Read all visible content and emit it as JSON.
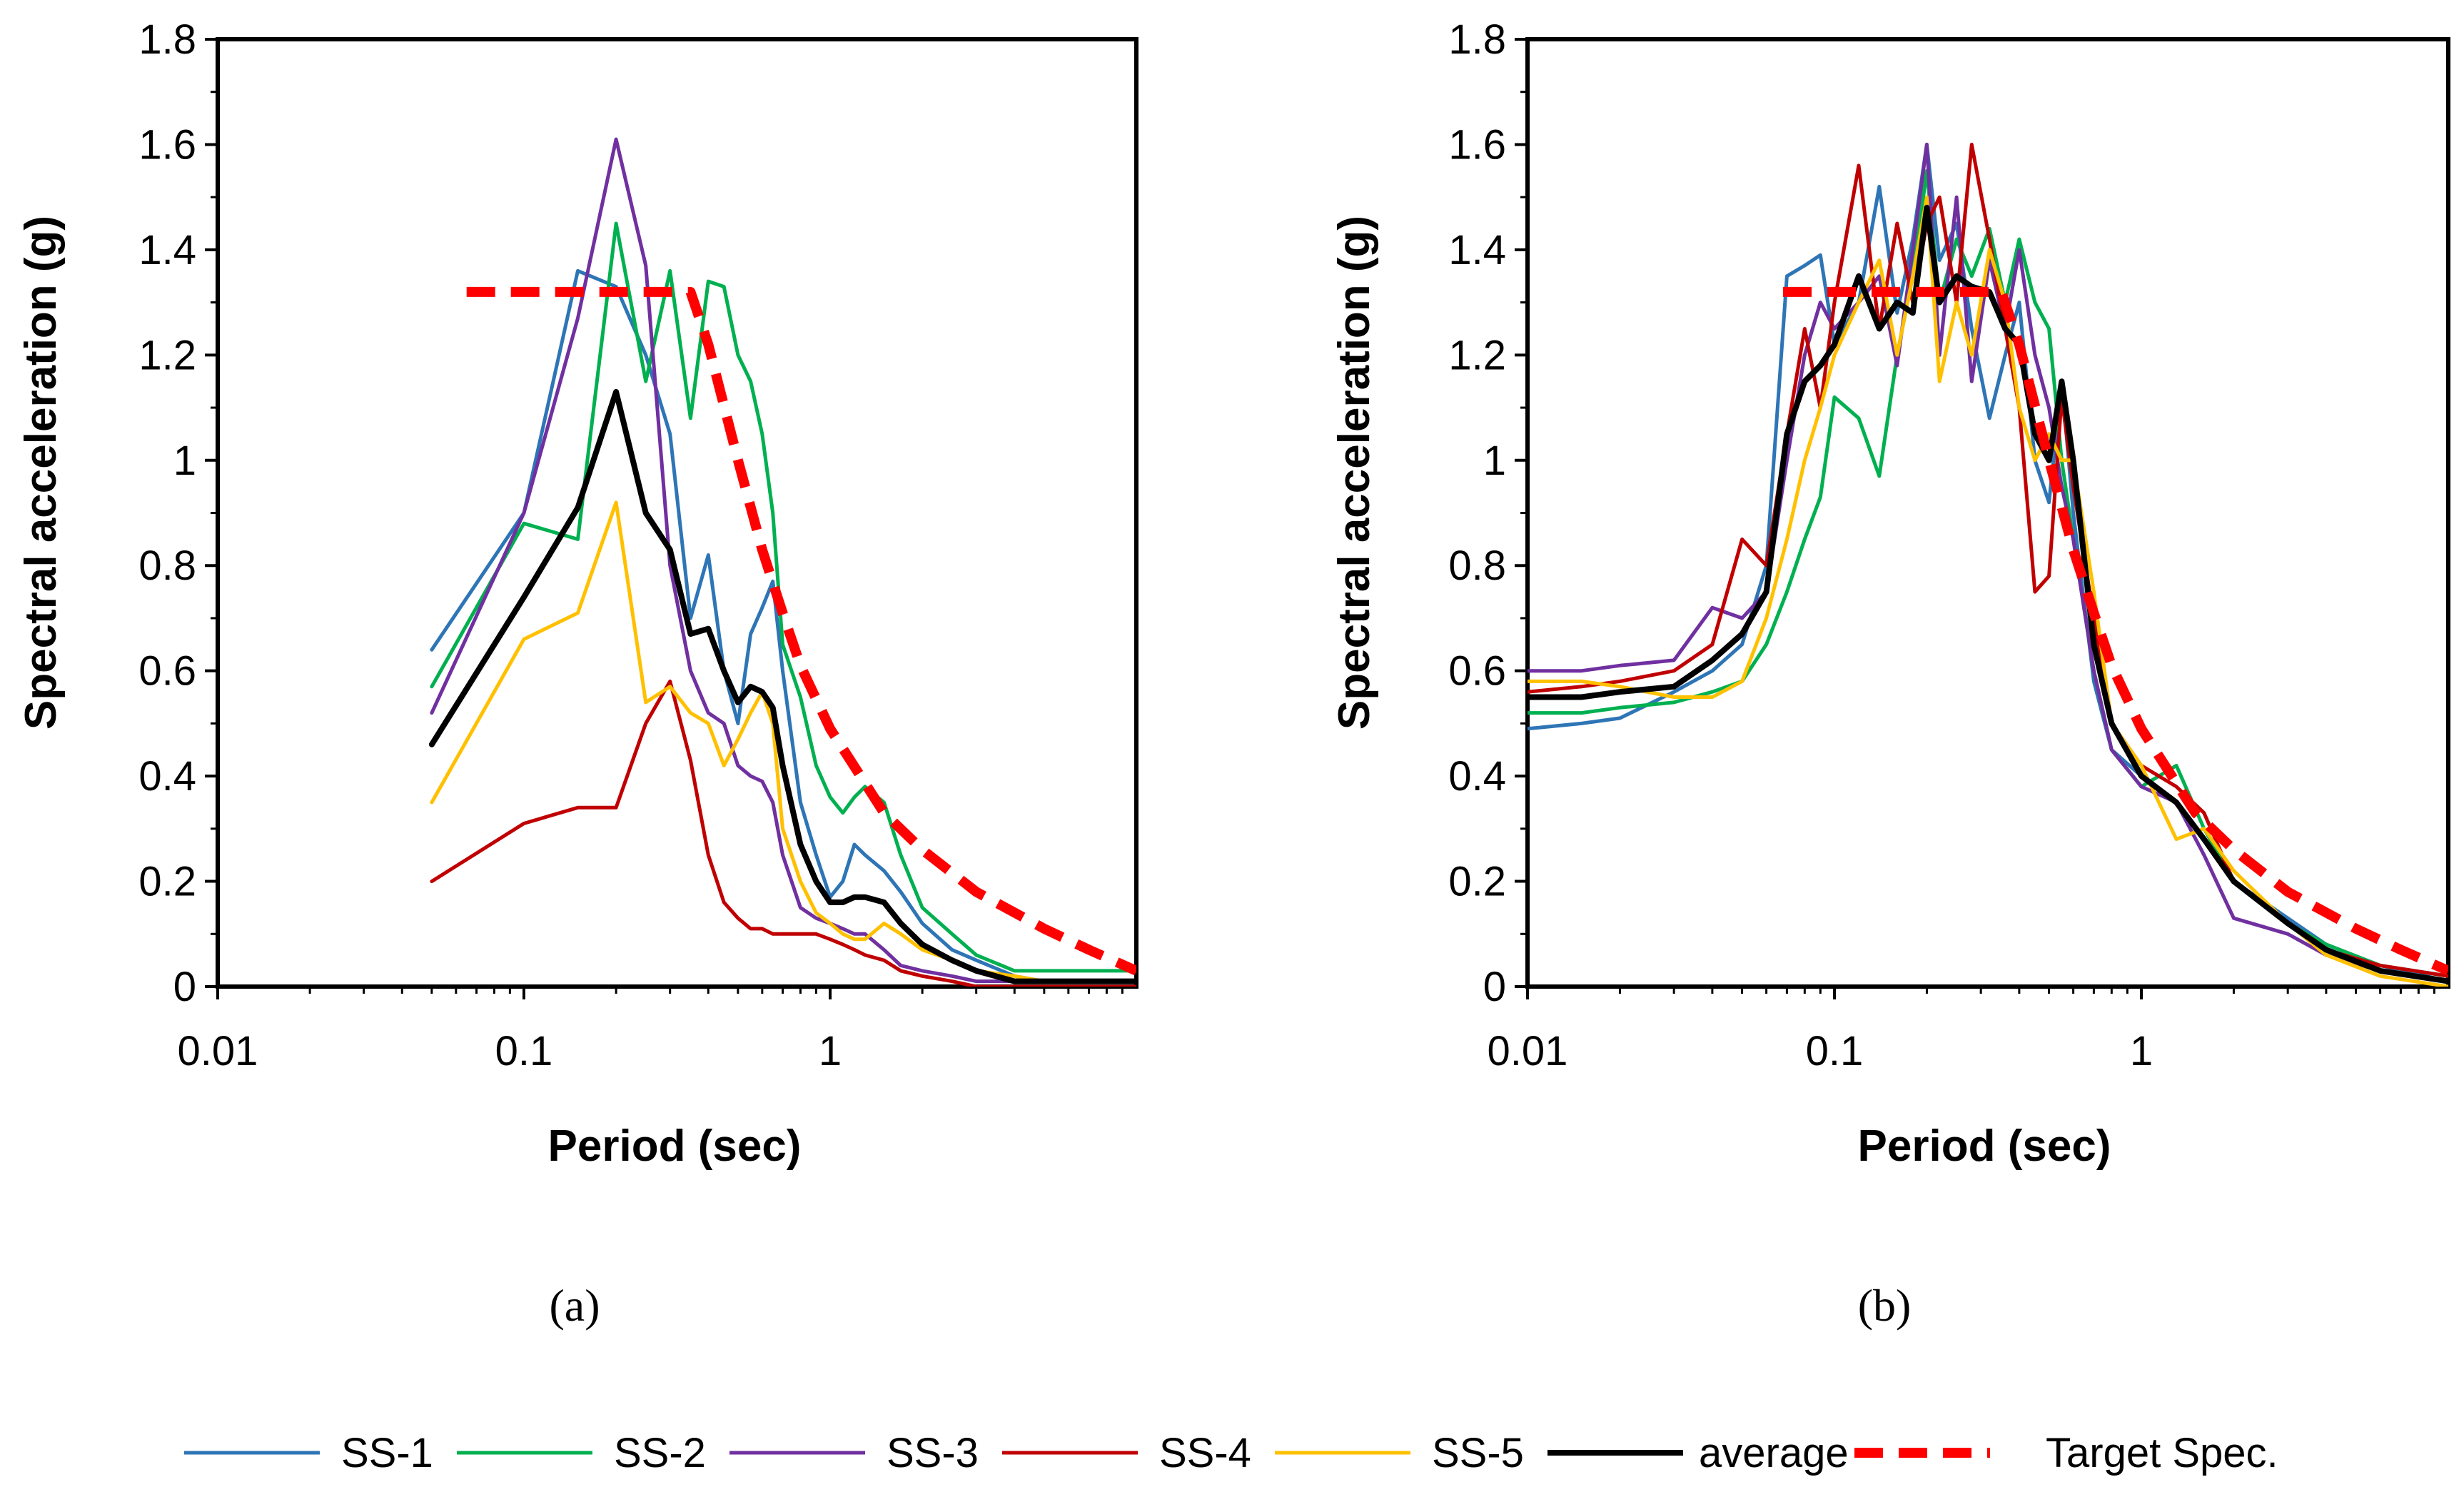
{
  "chart_data": [
    {
      "id": "a",
      "type": "line",
      "panel_label": "(a)",
      "xlabel": "Period (sec)",
      "ylabel": "Spectral acceleration (g)",
      "xscale": "log",
      "xlim": [
        0.01,
        10
      ],
      "ylim": [
        0,
        1.8
      ],
      "xticks": [
        0.01,
        0.1,
        1
      ],
      "xtick_labels": [
        "0.01",
        "0.1",
        "1"
      ],
      "yticks": [
        0,
        0.2,
        0.4,
        0.6,
        0.8,
        1,
        1.2,
        1.4,
        1.6,
        1.8
      ],
      "ytick_labels": [
        "0",
        "0.2",
        "0.4",
        "0.6",
        "0.8",
        "1",
        "1.2",
        "1.4",
        "1.6",
        "1.8"
      ],
      "grid": false,
      "series": [
        {
          "name": "SS-1",
          "color": "#2E75B6",
          "width": 5,
          "dash": "none",
          "x": [
            0.05,
            0.1,
            0.15,
            0.2,
            0.25,
            0.3,
            0.35,
            0.4,
            0.45,
            0.5,
            0.55,
            0.6,
            0.65,
            0.7,
            0.8,
            0.9,
            1.0,
            1.1,
            1.2,
            1.3,
            1.5,
            1.7,
            2.0,
            2.5,
            3,
            4,
            5,
            7,
            10
          ],
          "y": [
            0.64,
            0.9,
            1.36,
            1.33,
            1.2,
            1.05,
            0.7,
            0.82,
            0.6,
            0.5,
            0.67,
            0.72,
            0.77,
            0.6,
            0.35,
            0.25,
            0.17,
            0.2,
            0.27,
            0.25,
            0.22,
            0.18,
            0.12,
            0.07,
            0.05,
            0.02,
            0.01,
            0.01,
            0.01
          ]
        },
        {
          "name": "SS-2",
          "color": "#00B050",
          "width": 5,
          "dash": "none",
          "x": [
            0.05,
            0.1,
            0.15,
            0.2,
            0.25,
            0.3,
            0.35,
            0.4,
            0.45,
            0.5,
            0.55,
            0.6,
            0.65,
            0.7,
            0.8,
            0.9,
            1.0,
            1.1,
            1.2,
            1.3,
            1.5,
            1.7,
            2.0,
            2.5,
            3,
            4,
            5,
            7,
            10
          ],
          "y": [
            0.57,
            0.88,
            0.85,
            1.45,
            1.15,
            1.36,
            1.08,
            1.34,
            1.33,
            1.2,
            1.15,
            1.05,
            0.9,
            0.65,
            0.55,
            0.42,
            0.36,
            0.33,
            0.36,
            0.38,
            0.35,
            0.25,
            0.15,
            0.1,
            0.06,
            0.03,
            0.03,
            0.03,
            0.03
          ]
        },
        {
          "name": "SS-3",
          "color": "#7030A0",
          "width": 5,
          "dash": "none",
          "x": [
            0.05,
            0.1,
            0.15,
            0.2,
            0.25,
            0.3,
            0.35,
            0.4,
            0.45,
            0.5,
            0.55,
            0.6,
            0.65,
            0.7,
            0.8,
            0.9,
            1.0,
            1.1,
            1.2,
            1.3,
            1.5,
            1.7,
            2.0,
            2.5,
            3,
            4,
            5,
            7,
            10
          ],
          "y": [
            0.52,
            0.9,
            1.27,
            1.61,
            1.37,
            0.8,
            0.6,
            0.52,
            0.5,
            0.42,
            0.4,
            0.39,
            0.35,
            0.25,
            0.15,
            0.13,
            0.12,
            0.11,
            0.1,
            0.1,
            0.07,
            0.04,
            0.03,
            0.02,
            0.01,
            0.01,
            0.01,
            0.01,
            0.01
          ]
        },
        {
          "name": "SS-4",
          "color": "#C00000",
          "width": 5,
          "dash": "none",
          "x": [
            0.05,
            0.1,
            0.15,
            0.2,
            0.25,
            0.3,
            0.35,
            0.4,
            0.45,
            0.5,
            0.55,
            0.6,
            0.65,
            0.7,
            0.8,
            0.9,
            1.0,
            1.1,
            1.2,
            1.3,
            1.5,
            1.7,
            2.0,
            2.5,
            3,
            4,
            5,
            7,
            10
          ],
          "y": [
            0.2,
            0.31,
            0.34,
            0.34,
            0.5,
            0.58,
            0.43,
            0.25,
            0.16,
            0.13,
            0.11,
            0.11,
            0.1,
            0.1,
            0.1,
            0.1,
            0.09,
            0.08,
            0.07,
            0.06,
            0.05,
            0.03,
            0.02,
            0.01,
            0.0,
            0.0,
            0.0,
            0.0,
            0.0
          ]
        },
        {
          "name": "SS-5",
          "color": "#FFC000",
          "width": 5,
          "dash": "none",
          "x": [
            0.05,
            0.1,
            0.15,
            0.2,
            0.25,
            0.3,
            0.35,
            0.4,
            0.45,
            0.5,
            0.55,
            0.6,
            0.65,
            0.7,
            0.8,
            0.9,
            1.0,
            1.1,
            1.2,
            1.3,
            1.5,
            1.7,
            2.0,
            2.5,
            3,
            4,
            5,
            7,
            10
          ],
          "y": [
            0.35,
            0.66,
            0.71,
            0.92,
            0.54,
            0.57,
            0.52,
            0.5,
            0.42,
            0.47,
            0.52,
            0.56,
            0.5,
            0.3,
            0.2,
            0.14,
            0.12,
            0.1,
            0.09,
            0.09,
            0.12,
            0.1,
            0.07,
            0.05,
            0.03,
            0.02,
            0.01,
            0.01,
            0.01
          ]
        },
        {
          "name": "average",
          "color": "#000000",
          "width": 8,
          "dash": "none",
          "x": [
            0.05,
            0.1,
            0.15,
            0.2,
            0.25,
            0.3,
            0.35,
            0.4,
            0.45,
            0.5,
            0.55,
            0.6,
            0.65,
            0.7,
            0.8,
            0.9,
            1.0,
            1.1,
            1.2,
            1.3,
            1.5,
            1.7,
            2.0,
            2.5,
            3,
            4,
            5,
            7,
            10
          ],
          "y": [
            0.46,
            0.74,
            0.91,
            1.13,
            0.9,
            0.83,
            0.67,
            0.68,
            0.6,
            0.54,
            0.57,
            0.56,
            0.53,
            0.42,
            0.27,
            0.2,
            0.16,
            0.16,
            0.17,
            0.17,
            0.16,
            0.12,
            0.08,
            0.05,
            0.03,
            0.01,
            0.01,
            0.01,
            0.01
          ]
        },
        {
          "name": "Target Spec.",
          "color": "#FF0000",
          "width": 14,
          "dash": "40,22",
          "x": [
            0.065,
            0.1,
            0.2,
            0.3,
            0.35,
            0.4,
            0.5,
            0.6,
            0.7,
            0.8,
            1.0,
            1.5,
            2.0,
            3.0,
            5.0,
            7.0,
            10.0
          ],
          "y": [
            1.32,
            1.32,
            1.32,
            1.32,
            1.32,
            1.22,
            1.0,
            0.83,
            0.71,
            0.61,
            0.49,
            0.33,
            0.26,
            0.18,
            0.11,
            0.07,
            0.03
          ]
        }
      ]
    },
    {
      "id": "b",
      "type": "line",
      "panel_label": "(b)",
      "xlabel": "Period (sec)",
      "ylabel": "Spectral acceleration (g)",
      "xscale": "log",
      "xlim": [
        0.01,
        10
      ],
      "ylim": [
        0,
        1.8
      ],
      "xticks": [
        0.01,
        0.1,
        1
      ],
      "xtick_labels": [
        "0.01",
        "0.1",
        "1"
      ],
      "yticks": [
        0,
        0.2,
        0.4,
        0.6,
        0.8,
        1,
        1.2,
        1.4,
        1.6,
        1.8
      ],
      "ytick_labels": [
        "0",
        "0.2",
        "0.4",
        "0.6",
        "0.8",
        "1",
        "1.2",
        "1.4",
        "1.6",
        "1.8"
      ],
      "grid": false,
      "series": [
        {
          "name": "SS-1",
          "color": "#2E75B6",
          "width": 5,
          "dash": "none",
          "x": [
            0.01,
            0.015,
            0.02,
            0.03,
            0.04,
            0.05,
            0.06,
            0.07,
            0.08,
            0.09,
            0.1,
            0.12,
            0.14,
            0.16,
            0.18,
            0.2,
            0.22,
            0.25,
            0.28,
            0.32,
            0.36,
            0.4,
            0.45,
            0.5,
            0.55,
            0.6,
            0.7,
            0.8,
            1.0,
            1.3,
            1.6,
            2.0,
            3.0,
            4.0,
            6.0,
            10.0
          ],
          "y": [
            0.49,
            0.5,
            0.51,
            0.56,
            0.6,
            0.65,
            0.8,
            1.35,
            1.37,
            1.39,
            1.22,
            1.3,
            1.52,
            1.28,
            1.42,
            1.6,
            1.38,
            1.45,
            1.25,
            1.08,
            1.2,
            1.3,
            1.0,
            0.92,
            1.15,
            0.9,
            0.58,
            0.45,
            0.4,
            0.35,
            0.28,
            0.2,
            0.13,
            0.08,
            0.04,
            0.01
          ]
        },
        {
          "name": "SS-2",
          "color": "#00B050",
          "width": 5,
          "dash": "none",
          "x": [
            0.01,
            0.015,
            0.02,
            0.03,
            0.04,
            0.05,
            0.06,
            0.07,
            0.08,
            0.09,
            0.1,
            0.12,
            0.14,
            0.16,
            0.18,
            0.2,
            0.22,
            0.25,
            0.28,
            0.32,
            0.36,
            0.4,
            0.45,
            0.5,
            0.55,
            0.6,
            0.7,
            0.8,
            1.0,
            1.3,
            1.6,
            2.0,
            3.0,
            4.0,
            6.0,
            10.0
          ],
          "y": [
            0.52,
            0.52,
            0.53,
            0.54,
            0.56,
            0.58,
            0.65,
            0.75,
            0.85,
            0.93,
            1.12,
            1.08,
            0.97,
            1.2,
            1.35,
            1.55,
            1.3,
            1.42,
            1.35,
            1.44,
            1.3,
            1.42,
            1.3,
            1.25,
            1.0,
            0.85,
            0.6,
            0.45,
            0.38,
            0.42,
            0.3,
            0.2,
            0.12,
            0.08,
            0.04,
            0.02
          ]
        },
        {
          "name": "SS-3",
          "color": "#7030A0",
          "width": 5,
          "dash": "none",
          "x": [
            0.01,
            0.015,
            0.02,
            0.03,
            0.04,
            0.05,
            0.06,
            0.07,
            0.08,
            0.09,
            0.1,
            0.12,
            0.14,
            0.16,
            0.18,
            0.2,
            0.22,
            0.25,
            0.28,
            0.32,
            0.36,
            0.4,
            0.45,
            0.5,
            0.55,
            0.6,
            0.7,
            0.8,
            1.0,
            1.3,
            1.6,
            2.0,
            3.0,
            4.0,
            6.0,
            10.0
          ],
          "y": [
            0.6,
            0.6,
            0.61,
            0.62,
            0.72,
            0.7,
            0.75,
            1.0,
            1.2,
            1.3,
            1.25,
            1.3,
            1.35,
            1.18,
            1.4,
            1.6,
            1.2,
            1.5,
            1.15,
            1.38,
            1.25,
            1.4,
            1.2,
            1.1,
            0.95,
            0.85,
            0.6,
            0.45,
            0.38,
            0.35,
            0.25,
            0.13,
            0.1,
            0.06,
            0.03,
            0.01
          ]
        },
        {
          "name": "SS-4",
          "color": "#C00000",
          "width": 5,
          "dash": "none",
          "x": [
            0.01,
            0.015,
            0.02,
            0.03,
            0.04,
            0.05,
            0.06,
            0.07,
            0.08,
            0.09,
            0.1,
            0.12,
            0.14,
            0.16,
            0.18,
            0.2,
            0.22,
            0.25,
            0.28,
            0.32,
            0.36,
            0.4,
            0.45,
            0.5,
            0.55,
            0.6,
            0.7,
            0.8,
            1.0,
            1.3,
            1.6,
            2.0,
            3.0,
            4.0,
            6.0,
            10.0
          ],
          "y": [
            0.56,
            0.57,
            0.58,
            0.6,
            0.65,
            0.85,
            0.8,
            1.05,
            1.25,
            1.1,
            1.3,
            1.56,
            1.25,
            1.45,
            1.3,
            1.45,
            1.5,
            1.3,
            1.6,
            1.42,
            1.25,
            1.1,
            0.75,
            0.78,
            1.12,
            0.95,
            0.7,
            0.5,
            0.42,
            0.38,
            0.33,
            0.2,
            0.12,
            0.07,
            0.04,
            0.02
          ]
        },
        {
          "name": "SS-5",
          "color": "#FFC000",
          "width": 5,
          "dash": "none",
          "x": [
            0.01,
            0.015,
            0.02,
            0.03,
            0.04,
            0.05,
            0.06,
            0.07,
            0.08,
            0.09,
            0.1,
            0.12,
            0.14,
            0.16,
            0.18,
            0.2,
            0.22,
            0.25,
            0.28,
            0.32,
            0.36,
            0.4,
            0.45,
            0.5,
            0.55,
            0.6,
            0.7,
            0.8,
            1.0,
            1.3,
            1.6,
            2.0,
            3.0,
            4.0,
            6.0,
            10.0
          ],
          "y": [
            0.58,
            0.58,
            0.57,
            0.55,
            0.55,
            0.58,
            0.7,
            0.85,
            1.0,
            1.1,
            1.2,
            1.3,
            1.38,
            1.2,
            1.35,
            1.5,
            1.15,
            1.3,
            1.2,
            1.4,
            1.3,
            1.1,
            1.0,
            1.05,
            1.0,
            1.0,
            0.75,
            0.5,
            0.42,
            0.28,
            0.3,
            0.22,
            0.12,
            0.06,
            0.02,
            0.0
          ]
        },
        {
          "name": "average",
          "color": "#000000",
          "width": 8,
          "dash": "none",
          "x": [
            0.01,
            0.015,
            0.02,
            0.03,
            0.04,
            0.05,
            0.06,
            0.07,
            0.08,
            0.09,
            0.1,
            0.12,
            0.14,
            0.16,
            0.18,
            0.2,
            0.22,
            0.25,
            0.28,
            0.32,
            0.36,
            0.4,
            0.45,
            0.5,
            0.55,
            0.6,
            0.7,
            0.8,
            1.0,
            1.3,
            1.6,
            2.0,
            3.0,
            4.0,
            6.0,
            10.0
          ],
          "y": [
            0.55,
            0.55,
            0.56,
            0.57,
            0.62,
            0.67,
            0.75,
            1.05,
            1.15,
            1.18,
            1.22,
            1.35,
            1.25,
            1.3,
            1.28,
            1.48,
            1.3,
            1.35,
            1.33,
            1.32,
            1.25,
            1.22,
            1.05,
            1.0,
            1.15,
            1.0,
            0.65,
            0.5,
            0.4,
            0.35,
            0.28,
            0.2,
            0.12,
            0.07,
            0.03,
            0.01
          ]
        },
        {
          "name": "Target Spec.",
          "color": "#FF0000",
          "width": 14,
          "dash": "40,22",
          "x": [
            0.068,
            0.1,
            0.2,
            0.3,
            0.35,
            0.4,
            0.5,
            0.6,
            0.7,
            0.8,
            1.0,
            1.5,
            2.0,
            3.0,
            5.0,
            7.0,
            10.0
          ],
          "y": [
            1.32,
            1.32,
            1.32,
            1.32,
            1.32,
            1.22,
            1.0,
            0.83,
            0.71,
            0.61,
            0.49,
            0.33,
            0.26,
            0.18,
            0.11,
            0.07,
            0.03
          ]
        }
      ]
    }
  ],
  "legend": {
    "placement": "bottom-center",
    "entries": [
      {
        "label": "SS-1",
        "color": "#2E75B6",
        "width": 5,
        "dash": "none"
      },
      {
        "label": "SS-2",
        "color": "#00B050",
        "width": 5,
        "dash": "none"
      },
      {
        "label": "SS-3",
        "color": "#7030A0",
        "width": 5,
        "dash": "none"
      },
      {
        "label": "SS-4",
        "color": "#C00000",
        "width": 5,
        "dash": "none"
      },
      {
        "label": "SS-5",
        "color": "#FFC000",
        "width": 5,
        "dash": "none"
      },
      {
        "label": "average",
        "color": "#000000",
        "width": 8,
        "dash": "none"
      },
      {
        "label": "Target Spec.",
        "color": "#FF0000",
        "width": 14,
        "dash": "40,22"
      }
    ]
  }
}
